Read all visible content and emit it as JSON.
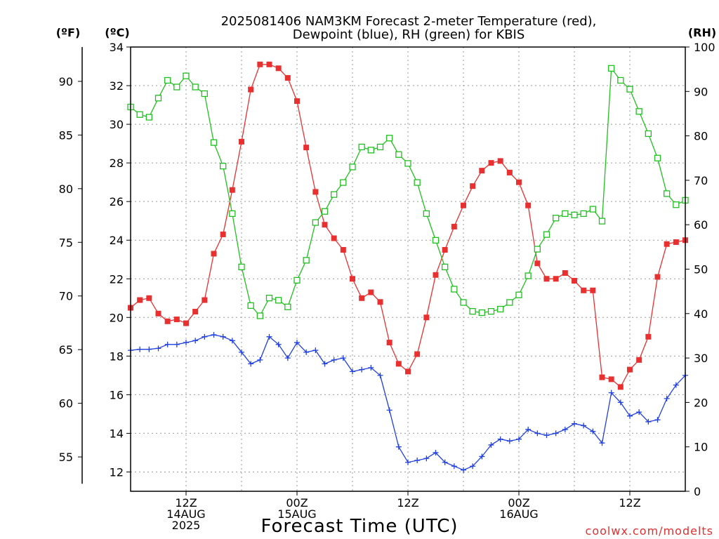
{
  "chart_data": {
    "type": "line",
    "title_line1": "2025081406 NAM3KM Forecast 2-meter Temperature (red),",
    "title_line2": "Dewpoint (blue), RH (green) for KBIS",
    "xlabel": "Forecast Time (UTC)",
    "credit": "coolwx.com/modelts",
    "units": {
      "fahrenheit": "(ºF)",
      "celsius": "(ºC)",
      "rh": "(RH)"
    },
    "x_range_hours": [
      6,
      66
    ],
    "x_ticks": [
      {
        "hour": 12,
        "lines": [
          "12Z",
          "14AUG",
          "2025"
        ]
      },
      {
        "hour": 24,
        "lines": [
          "00Z",
          "15AUG"
        ]
      },
      {
        "hour": 36,
        "lines": [
          "12Z"
        ]
      },
      {
        "hour": 48,
        "lines": [
          "00Z",
          "16AUG"
        ]
      },
      {
        "hour": 60,
        "lines": [
          "12Z"
        ]
      }
    ],
    "celsius_axis": {
      "min": 11,
      "max": 34,
      "ticks": [
        12,
        14,
        16,
        18,
        20,
        22,
        24,
        26,
        28,
        30,
        32,
        34
      ]
    },
    "fahrenheit_axis": {
      "ticks": [
        55,
        60,
        65,
        70,
        75,
        80,
        85,
        90
      ]
    },
    "rh_axis": {
      "min": 0,
      "max": 100,
      "ticks": [
        0,
        10,
        20,
        30,
        40,
        50,
        60,
        70,
        80,
        90,
        100
      ]
    },
    "hours": [
      6,
      7,
      8,
      9,
      10,
      11,
      12,
      13,
      14,
      15,
      16,
      17,
      18,
      19,
      20,
      21,
      22,
      23,
      24,
      25,
      26,
      27,
      28,
      29,
      30,
      31,
      32,
      33,
      34,
      35,
      36,
      37,
      38,
      39,
      40,
      41,
      42,
      43,
      44,
      45,
      46,
      47,
      48,
      49,
      50,
      51,
      52,
      53,
      54,
      55,
      56,
      57,
      58,
      59,
      60,
      61,
      62,
      63,
      64,
      65,
      66
    ],
    "series": [
      {
        "name": "Temperature",
        "axis": "celsius",
        "color": "#e83030",
        "marker": "filled-square",
        "values": [
          20.5,
          20.9,
          21.0,
          20.2,
          19.8,
          19.9,
          19.7,
          20.3,
          20.9,
          23.3,
          24.3,
          26.6,
          29.1,
          31.8,
          33.1,
          33.1,
          32.9,
          32.4,
          31.2,
          28.8,
          26.5,
          24.8,
          24.1,
          23.5,
          22.0,
          21.0,
          21.3,
          20.8,
          18.7,
          17.6,
          17.2,
          18.1,
          20.0,
          22.2,
          23.5,
          24.7,
          25.8,
          26.8,
          27.6,
          28.0,
          28.1,
          27.5,
          27.0,
          25.8,
          22.8,
          22.0,
          22.0,
          22.3,
          21.9,
          21.4,
          21.4,
          16.9,
          16.8,
          16.4,
          17.3,
          17.8,
          19.0,
          22.1,
          23.8,
          23.9,
          24.0
        ]
      },
      {
        "name": "Dewpoint",
        "axis": "celsius",
        "color": "#2040e0",
        "marker": "plus",
        "values": [
          18.3,
          18.35,
          18.35,
          18.4,
          18.6,
          18.6,
          18.7,
          18.8,
          19.0,
          19.1,
          19.0,
          18.8,
          18.2,
          17.6,
          17.8,
          19.0,
          18.6,
          17.9,
          18.7,
          18.2,
          18.3,
          17.6,
          17.8,
          17.9,
          17.2,
          17.3,
          17.4,
          17.0,
          15.2,
          13.3,
          12.5,
          12.6,
          12.7,
          13.0,
          12.5,
          12.3,
          12.1,
          12.3,
          12.8,
          13.4,
          13.7,
          13.6,
          13.7,
          14.2,
          14.0,
          13.9,
          14.0,
          14.2,
          14.5,
          14.4,
          14.1,
          13.5,
          16.1,
          15.6,
          14.9,
          15.1,
          14.6,
          14.7,
          15.8,
          16.5,
          17.0
        ]
      },
      {
        "name": "RH",
        "axis": "rh",
        "color": "#20c020",
        "marker": "open-square",
        "values": [
          86.5,
          84.8,
          84.2,
          88.5,
          92.5,
          91.0,
          93.5,
          91.0,
          89.5,
          78.5,
          73.2,
          62.5,
          50.5,
          41.8,
          39.5,
          43.5,
          43.0,
          41.5,
          47.5,
          52.0,
          60.5,
          63.0,
          66.8,
          69.5,
          73.0,
          77.5,
          76.8,
          77.5,
          79.5,
          75.8,
          73.8,
          69.5,
          62.5,
          56.5,
          50.5,
          45.5,
          42.5,
          40.5,
          40.2,
          40.5,
          41.0,
          42.5,
          44.2,
          48.5,
          54.5,
          57.8,
          61.5,
          62.5,
          62.2,
          62.5,
          63.5,
          60.8,
          95.2,
          92.5,
          90.5,
          85.5,
          80.5,
          75.0,
          67.0,
          64.5,
          65.5
        ]
      }
    ]
  }
}
